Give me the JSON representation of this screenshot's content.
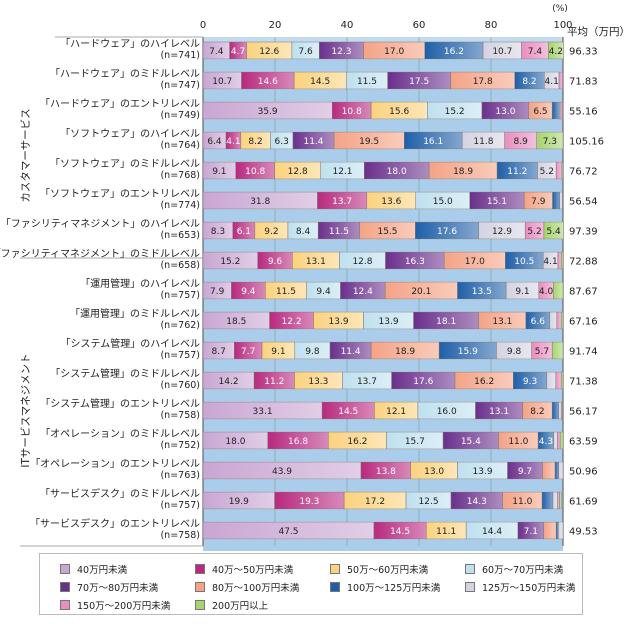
{
  "chart_data": {
    "type": "bar",
    "orientation": "horizontal-stacked-100",
    "x_unit_label": "(%)",
    "x_ticks": [
      "0",
      "20",
      "40",
      "60",
      "80",
      "100"
    ],
    "xlim": [
      0,
      100
    ],
    "avg_header": "平均（万円）",
    "groups": [
      {
        "name": "カスタマーサービス",
        "rows": [
          0,
          7
        ]
      },
      {
        "name": "ITサービスマネジメント",
        "rows": [
          8,
          16
        ]
      }
    ],
    "series": [
      {
        "name": "40万円未満",
        "color": "#c9a6d3"
      },
      {
        "name": "40万～50万円未満",
        "color": "#b8297f"
      },
      {
        "name": "50万～60万円未満",
        "color": "#fbd27e"
      },
      {
        "name": "60万～70万円未満",
        "color": "#bfe0ef"
      },
      {
        "name": "70万～80万円未満",
        "color": "#6a2f8c"
      },
      {
        "name": "80万～100万円未満",
        "color": "#f4a386"
      },
      {
        "name": "100万～125万円未満",
        "color": "#1f5fa8"
      },
      {
        "name": "125万～150万円未満",
        "color": "#d4d3e2"
      },
      {
        "name": "150万～200万円未満",
        "color": "#ea8ec0"
      },
      {
        "name": "200万円以上",
        "color": "#a7d46f"
      }
    ],
    "rows": [
      {
        "label": "「ハードウェア」のハイレベル",
        "n": "(n=741)",
        "avg": "96.33",
        "values": [
          7.4,
          4.7,
          12.6,
          7.6,
          12.3,
          17.0,
          16.2,
          10.7,
          7.4,
          4.2
        ]
      },
      {
        "label": "「ハードウェア」のミドルレベル",
        "n": "(n=747)",
        "avg": "71.83",
        "values": [
          10.7,
          14.6,
          14.5,
          11.5,
          17.5,
          17.8,
          8.2,
          4.1,
          1.0,
          0.1
        ]
      },
      {
        "label": "「ハードウェア」のエントリレベル",
        "n": "(n=749)",
        "avg": "55.16",
        "values": [
          35.9,
          10.8,
          15.6,
          15.2,
          13.0,
          6.5,
          2.0,
          0.4,
          0.5,
          0.1
        ]
      },
      {
        "label": "「ソフトウェア」のハイレベル",
        "n": "(n=764)",
        "avg": "105.16",
        "values": [
          6.4,
          4.1,
          8.2,
          6.3,
          11.4,
          19.5,
          16.1,
          11.8,
          8.9,
          7.3
        ]
      },
      {
        "label": "「ソフトウェア」のミドルレベル",
        "n": "(n=768)",
        "avg": "76.72",
        "values": [
          9.1,
          10.8,
          12.8,
          12.1,
          18.0,
          18.9,
          11.2,
          5.2,
          1.6,
          0.3
        ]
      },
      {
        "label": "「ソフトウェア」のエントリレベル",
        "n": "(n=774)",
        "avg": "56.54",
        "values": [
          31.8,
          13.7,
          13.6,
          15.0,
          15.1,
          7.9,
          2.0,
          0.7,
          0.2,
          0.0
        ]
      },
      {
        "label": "「ファシリティマネジメント」のハイレベル",
        "n": "(n=653)",
        "avg": "97.39",
        "values": [
          8.3,
          6.1,
          9.2,
          8.4,
          11.5,
          15.5,
          17.6,
          12.9,
          5.2,
          5.4
        ]
      },
      {
        "label": "「ファシリティマネジメント」のミドルレベル",
        "n": "(n=658)",
        "avg": "72.88",
        "values": [
          15.2,
          9.6,
          13.1,
          12.8,
          16.3,
          17.0,
          10.5,
          4.1,
          0.9,
          0.5
        ]
      },
      {
        "label": "「運用管理」のハイレベル",
        "n": "(n=757)",
        "avg": "87.67",
        "values": [
          7.9,
          9.4,
          11.5,
          9.4,
          12.4,
          20.1,
          13.5,
          9.1,
          4.0,
          2.7
        ]
      },
      {
        "label": "「運用管理」のミドルレベル",
        "n": "(n=762)",
        "avg": "67.16",
        "values": [
          18.5,
          12.2,
          13.9,
          13.9,
          18.1,
          13.1,
          6.6,
          2.0,
          1.2,
          0.5
        ]
      },
      {
        "label": "「システム管理」のハイレベル",
        "n": "(n=757)",
        "avg": "91.74",
        "values": [
          8.7,
          7.7,
          9.1,
          9.8,
          11.4,
          18.9,
          15.9,
          9.8,
          5.7,
          3.0
        ]
      },
      {
        "label": "「システム管理」のミドルレベル",
        "n": "(n=760)",
        "avg": "71.38",
        "values": [
          14.2,
          11.2,
          13.3,
          13.7,
          17.6,
          16.2,
          9.3,
          2.5,
          1.5,
          0.5
        ]
      },
      {
        "label": "「システム管理」のエントリレベル",
        "n": "(n=758)",
        "avg": "56.17",
        "values": [
          33.1,
          14.5,
          12.1,
          16.0,
          13.1,
          8.2,
          1.8,
          0.7,
          0.3,
          0.2
        ]
      },
      {
        "label": "「オペレーション」のミドルレベル",
        "n": "(n=752)",
        "avg": "63.59",
        "values": [
          18.0,
          16.8,
          16.2,
          15.7,
          15.4,
          11.0,
          4.3,
          1.0,
          0.8,
          0.8
        ]
      },
      {
        "label": "「オペレーション」のエントリレベル",
        "n": "(n=763)",
        "avg": "50.96",
        "values": [
          43.9,
          13.8,
          13.0,
          13.9,
          9.7,
          3.5,
          1.0,
          1.2,
          0.0,
          0.0
        ]
      },
      {
        "label": "「サービスデスク」のミドルレベル",
        "n": "(n=757)",
        "avg": "61.69",
        "values": [
          19.9,
          19.3,
          17.2,
          12.5,
          14.3,
          11.0,
          3.0,
          1.3,
          0.5,
          0.5
        ]
      },
      {
        "label": "「サービスデスク」のエントリレベル",
        "n": "(n=758)",
        "avg": "49.53",
        "values": [
          47.5,
          14.5,
          11.1,
          14.4,
          7.1,
          3.5,
          0.6,
          1.3,
          0.0,
          0.0
        ]
      }
    ],
    "label_threshold": 4.0,
    "legend_position": "bottom"
  }
}
